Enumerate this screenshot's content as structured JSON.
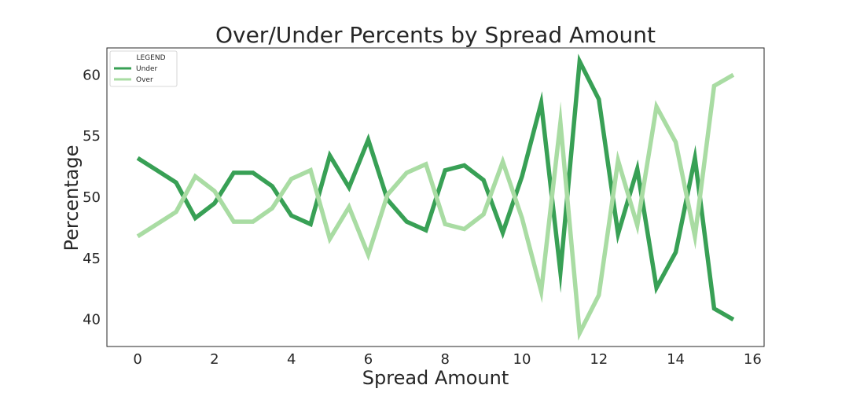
{
  "chart_data": {
    "type": "line",
    "title": "Over/Under Percents by Spread Amount",
    "xlabel": "Spread Amount",
    "ylabel": "Percentage",
    "xlim": [
      -0.8,
      16.3
    ],
    "ylim": [
      37.8,
      62.2
    ],
    "xticks": [
      0,
      2,
      4,
      6,
      8,
      10,
      12,
      14,
      16
    ],
    "yticks": [
      40,
      45,
      50,
      55,
      60
    ],
    "grid": false,
    "legend": {
      "title": "LEGEND",
      "placement": "top-left"
    },
    "x": [
      0,
      0.5,
      1,
      1.5,
      2,
      2.5,
      3,
      3.5,
      4,
      4.5,
      5,
      5.5,
      6,
      6.5,
      7,
      7.5,
      8,
      8.5,
      9,
      9.5,
      10,
      10.5,
      11,
      11.5,
      12,
      12.5,
      13,
      13.5,
      14,
      14.5,
      15,
      15.5
    ],
    "series": [
      {
        "name": "Under",
        "color": "#38a055",
        "values": [
          53.2,
          52.2,
          51.2,
          48.3,
          49.5,
          52.0,
          52.0,
          50.9,
          48.5,
          47.8,
          53.4,
          50.8,
          54.7,
          49.8,
          48.0,
          47.3,
          52.2,
          52.6,
          51.4,
          47.1,
          51.7,
          57.7,
          43.9,
          61.1,
          58.0,
          47.0,
          52.3,
          42.6,
          45.5,
          53.2,
          40.9,
          40.0
        ]
      },
      {
        "name": "Over",
        "color": "#a9dca3",
        "values": [
          46.8,
          47.8,
          48.8,
          51.7,
          50.5,
          48.0,
          48.0,
          49.1,
          51.5,
          52.2,
          46.6,
          49.2,
          45.3,
          50.2,
          52.0,
          52.7,
          47.8,
          47.4,
          48.6,
          52.9,
          48.3,
          42.3,
          56.1,
          38.9,
          42.0,
          53.0,
          47.7,
          57.4,
          54.5,
          46.8,
          59.1,
          60.0
        ]
      }
    ]
  }
}
